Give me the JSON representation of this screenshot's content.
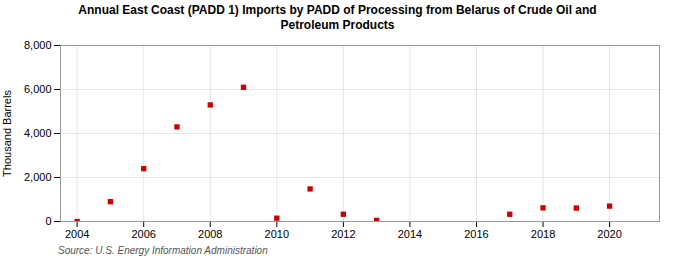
{
  "chart_data": {
    "type": "scatter",
    "title": "Annual East Coast (PADD 1) Imports by PADD of Processing from Belarus of Crude Oil and\nPetroleum Products",
    "ylabel": "Thousand Barrels",
    "source": "Source: U.S. Energy Information Administration",
    "x": [
      2004,
      2005,
      2006,
      2007,
      2008,
      2009,
      2010,
      2011,
      2012,
      2013,
      2017,
      2018,
      2019,
      2020
    ],
    "values": [
      0,
      900,
      2400,
      4300,
      5300,
      6100,
      150,
      1480,
      330,
      50,
      330,
      620,
      610,
      700
    ],
    "color": "#cc0000",
    "marker": "square",
    "xlim": [
      2003.5,
      2021.5
    ],
    "xticks": [
      2004,
      2006,
      2008,
      2010,
      2012,
      2014,
      2016,
      2018,
      2020
    ],
    "ylim": [
      0,
      8000
    ],
    "yticks": [
      0,
      {
        "value": 2000,
        "label": "2,000"
      },
      {
        "value": 4000,
        "label": "4,000"
      },
      {
        "value": 6000,
        "label": "6,000"
      },
      {
        "value": 8000,
        "label": "8,000"
      }
    ],
    "grid": true
  }
}
